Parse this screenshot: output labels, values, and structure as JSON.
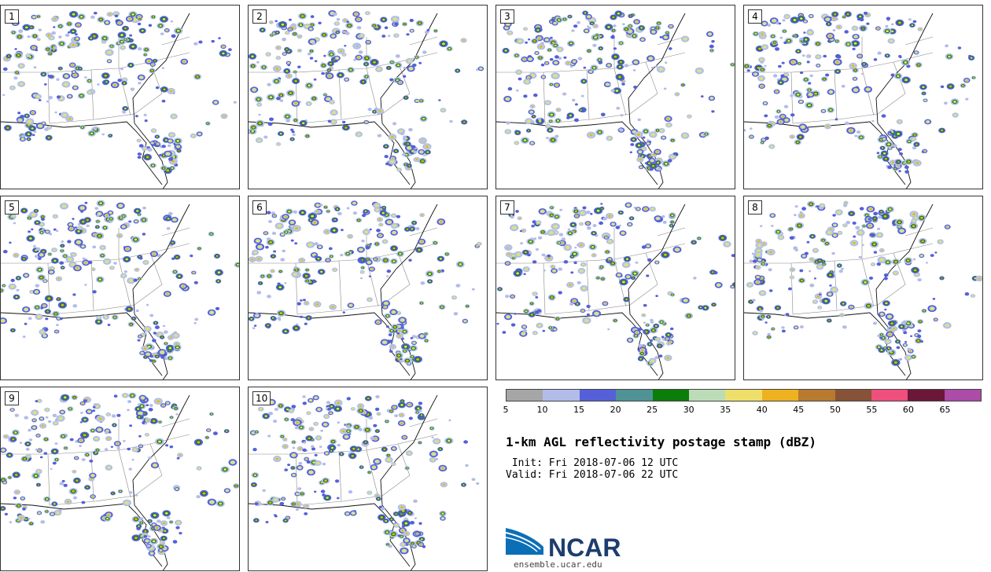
{
  "panels": [
    {
      "label": "1"
    },
    {
      "label": "2"
    },
    {
      "label": "3"
    },
    {
      "label": "4"
    },
    {
      "label": "5"
    },
    {
      "label": "6"
    },
    {
      "label": "7"
    },
    {
      "label": "8"
    },
    {
      "label": "9"
    },
    {
      "label": "10"
    }
  ],
  "colorbar": {
    "colors": [
      "#a6a6a6",
      "#b3bce8",
      "#5560d8",
      "#4f9396",
      "#0a7d0a",
      "#bcdcb8",
      "#eedf6a",
      "#eeb11f",
      "#b77a2e",
      "#875237",
      "#ee4f7c",
      "#6a1738",
      "#ac4ba8"
    ],
    "ticks": [
      "5",
      "10",
      "15",
      "20",
      "25",
      "30",
      "35",
      "40",
      "45",
      "50",
      "55",
      "60",
      "65"
    ]
  },
  "title": "1-km AGL reflectivity postage stamp (dBZ)",
  "init": " Init: Fri 2018-07-06 12 UTC",
  "valid": "Valid: Fri 2018-07-06 22 UTC",
  "logo": {
    "text": "NCAR",
    "colors": {
      "blue": "#0b6fb8",
      "navy": "#1d3d6e"
    }
  },
  "site": "ensemble.ucar.edu"
}
